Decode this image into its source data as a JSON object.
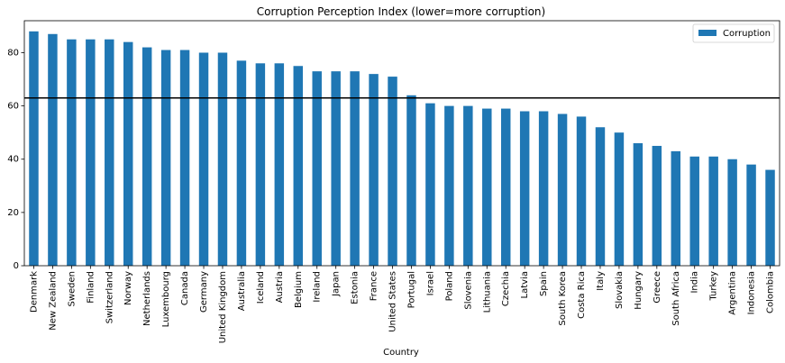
{
  "chart_data": {
    "type": "bar",
    "title": "Corruption Perception Index (lower=more corruption)",
    "xlabel": "Country",
    "ylabel": "",
    "ylim": [
      0,
      92
    ],
    "yticks": [
      0,
      20,
      40,
      60,
      80
    ],
    "grid": false,
    "legend_position": "top-right",
    "categories": [
      "Denmark",
      "New Zealand",
      "Sweden",
      "Finland",
      "Switzerland",
      "Norway",
      "Netherlands",
      "Luxembourg",
      "Canada",
      "Germany",
      "United Kingdom",
      "Australia",
      "Iceland",
      "Austria",
      "Belgium",
      "Ireland",
      "Japan",
      "Estonia",
      "France",
      "United States",
      "Portugal",
      "Israel",
      "Poland",
      "Slovenia",
      "Lithuania",
      "Czechia",
      "Latvia",
      "Spain",
      "South Korea",
      "Costa Rica",
      "Italy",
      "Slovakia",
      "Hungary",
      "Greece",
      "South Africa",
      "India",
      "Turkey",
      "Argentina",
      "Indonesia",
      "Colombia"
    ],
    "series": [
      {
        "name": "Corruption",
        "color": "#1f77b4",
        "values": [
          88,
          87,
          85,
          85,
          85,
          84,
          82,
          81,
          81,
          80,
          80,
          77,
          76,
          76,
          75,
          73,
          73,
          73,
          72,
          71,
          64,
          61,
          60,
          60,
          59,
          59,
          58,
          58,
          57,
          56,
          52,
          50,
          46,
          45,
          43,
          41,
          41,
          40,
          38,
          36
        ]
      }
    ],
    "reference_line": {
      "y": 63,
      "color": "#000000"
    }
  }
}
